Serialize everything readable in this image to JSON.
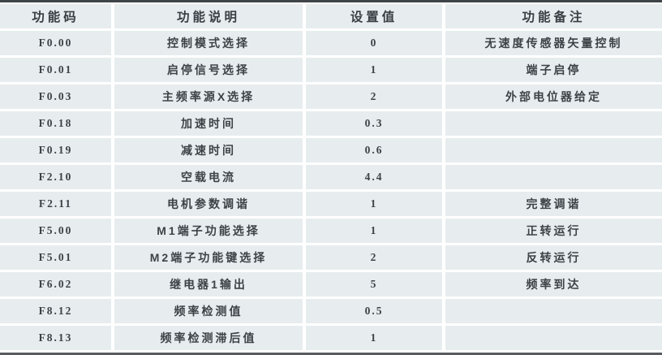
{
  "colors": {
    "cell_bg": "#e7edee",
    "text_dark": "#3d4247",
    "text_darker": "#383e43",
    "border_dark": "#3f4449",
    "border_dark2": "#565c60"
  },
  "table": {
    "headers": [
      "功能码",
      "功能说明",
      "设置值",
      "功能备注"
    ],
    "rows": [
      {
        "code": "F0.00",
        "desc": "控制模式选择",
        "value": "0",
        "remark": "无速度传感器矢量控制"
      },
      {
        "code": "F0.01",
        "desc": "启停信号选择",
        "value": "1",
        "remark": "端子启停"
      },
      {
        "code": "F0.03",
        "desc": "主频率源X选择",
        "value": "2",
        "remark": "外部电位器给定"
      },
      {
        "code": "F0.18",
        "desc": "加速时间",
        "value": "0.3",
        "remark": ""
      },
      {
        "code": "F0.19",
        "desc": "减速时间",
        "value": "0.6",
        "remark": ""
      },
      {
        "code": "F2.10",
        "desc": "空载电流",
        "value": "4.4",
        "remark": ""
      },
      {
        "code": "F2.11",
        "desc": "电机参数调谐",
        "value": "1",
        "remark": "完整调谐"
      },
      {
        "code": "F5.00",
        "desc": "M1端子功能选择",
        "value": "1",
        "remark": "正转运行"
      },
      {
        "code": "F5.01",
        "desc": "M2端子功能键选择",
        "value": "2",
        "remark": "反转运行"
      },
      {
        "code": "F6.02",
        "desc": "继电器1输出",
        "value": "5",
        "remark": "频率到达"
      },
      {
        "code": "F8.12",
        "desc": "频率检测值",
        "value": "0.5",
        "remark": ""
      },
      {
        "code": "F8.13",
        "desc": "频率检测滞后值",
        "value": "1",
        "remark": ""
      }
    ]
  }
}
